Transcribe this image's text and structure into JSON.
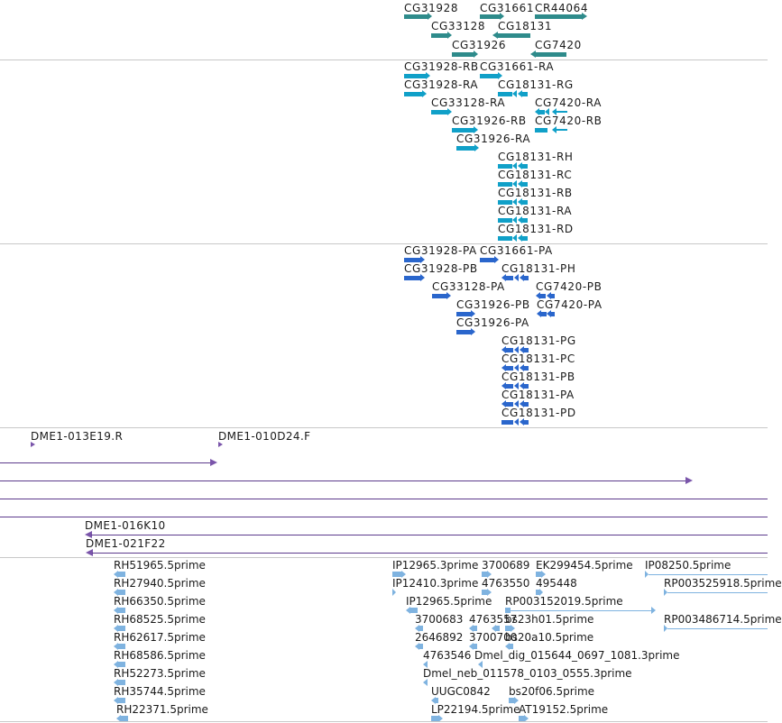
{
  "genes": {
    "row1": [
      "CG31928",
      "CG31661",
      "CR44064"
    ],
    "row2": [
      "CG33128",
      "CG18131"
    ],
    "row3": [
      "CG31926",
      "CG7420"
    ]
  },
  "transcripts": [
    "CG31928-RB",
    "CG31661-RA",
    "CG31928-RA",
    "CG18131-RG",
    "CG33128-RA",
    "CG7420-RA",
    "CG31926-RB",
    "CG7420-RB",
    "CG31926-RA",
    "CG18131-RH",
    "CG18131-RC",
    "CG18131-RB",
    "CG18131-RA",
    "CG18131-RD"
  ],
  "proteins": [
    "CG31928-PA",
    "CG31661-PA",
    "CG31928-PB",
    "CG18131-PH",
    "CG33128-PA",
    "CG7420-PB",
    "CG31926-PB",
    "CG7420-PA",
    "CG31926-PA",
    "CG18131-PG",
    "CG18131-PC",
    "CG18131-PB",
    "CG18131-PA",
    "CG18131-PD"
  ],
  "clones": [
    "DME1-013E19.R",
    "DME1-010D24.F",
    "DME1-016K10",
    "DME1-021F22"
  ],
  "ests": [
    "RH51965.5prime",
    "RH27940.5prime",
    "RH66350.5prime",
    "RH68525.5prime",
    "RH62617.5prime",
    "RH68586.5prime",
    "RH52273.5prime",
    "RH35744.5prime",
    "RH22371.5prime",
    "IP12965.3prime",
    "3700689",
    "EK299454.5prime",
    "IP08250.5prime",
    "IP12410.3prime",
    "4763550",
    "495448",
    "RP003525918.5prime",
    "IP12965.5prime",
    "RP003152019.5prime",
    "3700683",
    "4763557",
    "bs23h01.5prime",
    "RP003486714.5prime",
    "2646892",
    "3700700",
    "bs20a10.5prime",
    "4763546",
    "Dmel_dig_015644_0697_1081.3prime",
    "Dmel_neb_011578_0103_0555.3prime",
    "UUGC0842",
    "bs20f06.5prime",
    "LP22194.5prime",
    "AT19152.5prime"
  ],
  "colors": {
    "gene": "#2e8b8b",
    "transcript": "#10a0c8",
    "protein": "#2a66cc",
    "clone": "#5c3a8c",
    "est": "#7fb3e0"
  }
}
